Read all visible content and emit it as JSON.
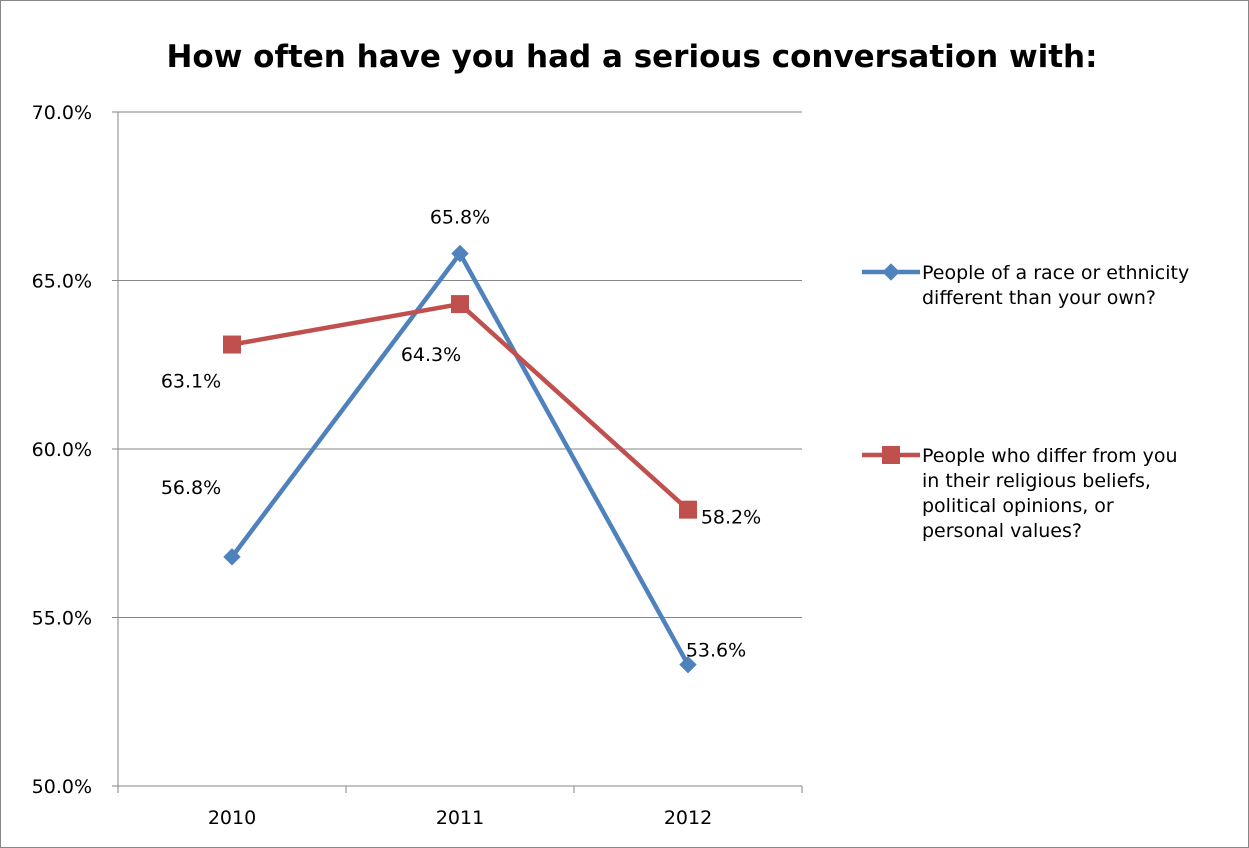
{
  "chart_data": {
    "type": "line",
    "title": "How often have you had a serious conversation with:",
    "xlabel": "",
    "ylabel": "",
    "categories": [
      "2010",
      "2011",
      "2012"
    ],
    "ylim": [
      50.0,
      70.0
    ],
    "y_ticks": [
      "50.0%",
      "55.0%",
      "60.0%",
      "65.0%",
      "70.0%"
    ],
    "y_tick_values": [
      50.0,
      55.0,
      60.0,
      65.0,
      70.0
    ],
    "grid": true,
    "legend_position": "right",
    "series": [
      {
        "name": "People of a race or ethnicity different than your own?",
        "legend_lines": [
          "People of a race or ethnicity",
          "different than your own?"
        ],
        "values": [
          56.8,
          65.8,
          53.6
        ],
        "labels": [
          "56.8%",
          "65.8%",
          "53.6%"
        ],
        "color": "#4F81BD",
        "marker": "diamond"
      },
      {
        "name": "People who differ from you in their religious beliefs, political opinions, or personal values?",
        "legend_lines": [
          "People who differ from you",
          "in their religious beliefs,",
          "political opinions, or",
          "personal values?"
        ],
        "values": [
          63.1,
          64.3,
          58.2
        ],
        "labels": [
          "63.1%",
          "64.3%",
          "58.2%"
        ],
        "color": "#C0504D",
        "marker": "square"
      }
    ]
  }
}
